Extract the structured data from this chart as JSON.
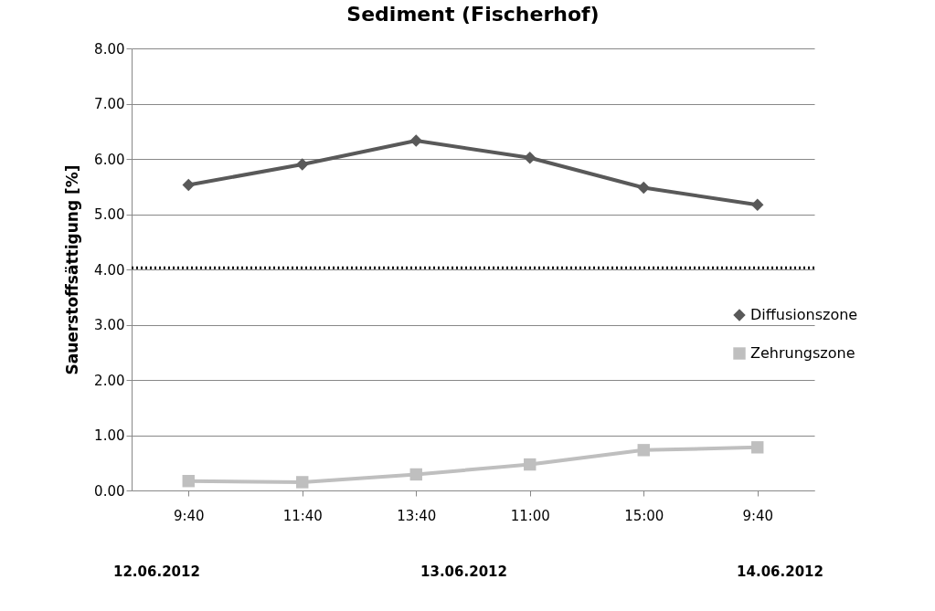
{
  "chart_data": {
    "type": "line",
    "title": "Sediment (Fischerhof)",
    "ylabel": "Sauerstoffsättigung [%]",
    "categories": [
      "9:40",
      "11:40",
      "13:40",
      "11:00",
      "15:00",
      "9:40"
    ],
    "series": [
      {
        "name": "Diffusionszone",
        "color": "#595959",
        "marker": "diamond",
        "values": [
          5.53,
          5.9,
          6.33,
          6.02,
          5.48,
          5.17
        ]
      },
      {
        "name": "Zehrungszone",
        "color": "#bfbfbf",
        "marker": "square",
        "values": [
          0.17,
          0.15,
          0.29,
          0.47,
          0.73,
          0.78
        ]
      }
    ],
    "ylim": [
      0,
      8
    ],
    "yticks": [
      {
        "value": 0,
        "label": "0.00"
      },
      {
        "value": 1,
        "label": "1.00"
      },
      {
        "value": 2,
        "label": "2.00"
      },
      {
        "value": 3,
        "label": "3.00"
      },
      {
        "value": 4,
        "label": "4.00"
      },
      {
        "value": 5,
        "label": "5.00"
      },
      {
        "value": 6,
        "label": "6.00"
      },
      {
        "value": 7,
        "label": "7.00"
      },
      {
        "value": 8,
        "label": "8.00"
      }
    ],
    "ref_lines": [
      {
        "axis": "y",
        "value": 4.03,
        "color": "#000000",
        "line_style": "dotted"
      }
    ],
    "annotations": [
      "12.06.2012",
      "13.06.2012",
      "14.06.2012"
    ],
    "grid": "y",
    "legend": "right",
    "line_style": "solid"
  }
}
